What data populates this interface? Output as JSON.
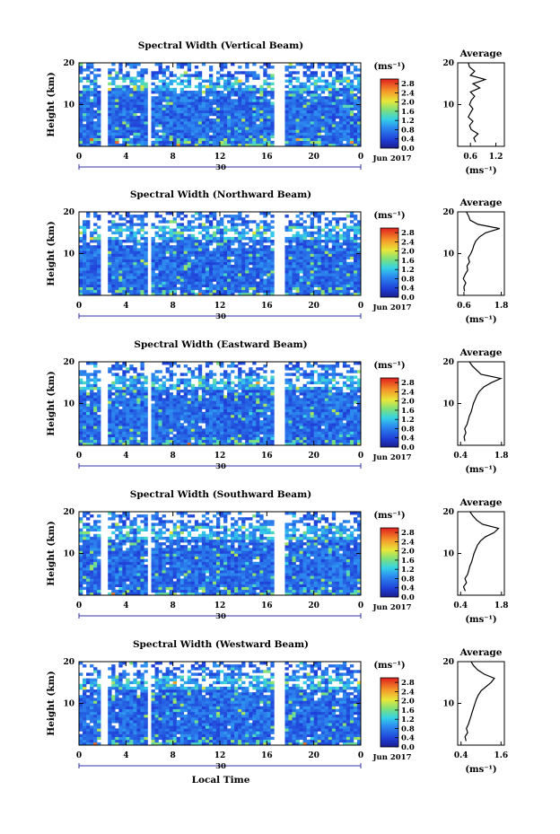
{
  "chart_data": [
    {
      "type": "heatmap",
      "title": "Spectral Width (Vertical Beam)",
      "ylabel": "Height (km)",
      "xticks": [
        "0",
        "4",
        "8",
        "12",
        "16",
        "20",
        "0"
      ],
      "yticks": [
        "20",
        "10"
      ],
      "xlim": [
        0,
        24
      ],
      "ylim": [
        0,
        20
      ],
      "date_marker": "30",
      "date_label": "Jun 2017",
      "colorbar": {
        "unit": "(ms⁻¹)",
        "ticks": [
          "2.8",
          "2.4",
          "2.0",
          "1.6",
          "1.2",
          "0.8",
          "0.4",
          "0.0"
        ],
        "range": [
          0,
          3.0
        ]
      },
      "profile": {
        "title": "Average",
        "xticks": [
          "0.6",
          "1.2"
        ],
        "yticks": [
          "20",
          "10"
        ],
        "xlim": [
          0.3,
          1.4
        ],
        "xlabel": "(ms⁻¹)",
        "y": [
          1,
          2,
          3,
          4,
          5,
          6,
          7,
          8,
          9,
          10,
          11,
          12,
          13,
          14,
          15,
          16,
          17,
          18,
          19,
          20
        ],
        "x": [
          0.72,
          0.68,
          0.78,
          0.62,
          0.58,
          0.66,
          0.55,
          0.6,
          0.66,
          0.58,
          0.62,
          0.7,
          0.6,
          0.82,
          0.66,
          0.95,
          0.6,
          0.7,
          0.58,
          0.55
        ]
      }
    },
    {
      "type": "heatmap",
      "title": "Spectral Width (Northward Beam)",
      "ylabel": "Height (km)",
      "xticks": [
        "0",
        "4",
        "8",
        "12",
        "16",
        "20",
        "0"
      ],
      "yticks": [
        "20",
        "10"
      ],
      "xlim": [
        0,
        24
      ],
      "ylim": [
        0,
        20
      ],
      "date_marker": "30",
      "date_label": "Jun 2017",
      "colorbar": {
        "unit": "(ms⁻¹)",
        "ticks": [
          "2.8",
          "2.4",
          "2.0",
          "1.6",
          "1.2",
          "0.8",
          "0.4",
          "0.0"
        ],
        "range": [
          0,
          3.0
        ]
      },
      "profile": {
        "title": "Average",
        "xticks": [
          "0.6",
          "1.8"
        ],
        "yticks": [
          "20",
          "10"
        ],
        "xlim": [
          0.4,
          1.9
        ],
        "xlabel": "(ms⁻¹)",
        "y": [
          1,
          2,
          3,
          4,
          5,
          6,
          7,
          8,
          9,
          10,
          11,
          12,
          13,
          14,
          15,
          16,
          17,
          18,
          19,
          20
        ],
        "x": [
          0.62,
          0.6,
          0.66,
          0.58,
          0.64,
          0.72,
          0.7,
          0.78,
          0.74,
          0.82,
          0.88,
          0.92,
          0.98,
          1.1,
          1.3,
          1.75,
          1.05,
          0.8,
          0.75,
          0.68
        ]
      }
    },
    {
      "type": "heatmap",
      "title": "Spectral Width (Eastward Beam)",
      "ylabel": "Height (km)",
      "xticks": [
        "0",
        "4",
        "8",
        "12",
        "16",
        "20",
        "0"
      ],
      "yticks": [
        "20",
        "10"
      ],
      "xlim": [
        0,
        24
      ],
      "ylim": [
        0,
        20
      ],
      "date_marker": "30",
      "date_label": "Jun 2017",
      "colorbar": {
        "unit": "(ms⁻¹)",
        "ticks": [
          "2.8",
          "2.4",
          "2.0",
          "1.6",
          "1.2",
          "0.8",
          "0.4",
          "0.0"
        ],
        "range": [
          0,
          3.0
        ]
      },
      "profile": {
        "title": "Average",
        "xticks": [
          "0.4",
          "1.8"
        ],
        "yticks": [
          "20",
          "10"
        ],
        "xlim": [
          0.3,
          1.9
        ],
        "xlabel": "(ms⁻¹)",
        "y": [
          1,
          2,
          3,
          4,
          5,
          6,
          7,
          8,
          9,
          10,
          11,
          12,
          13,
          14,
          15,
          16,
          17,
          18,
          19,
          20
        ],
        "x": [
          0.55,
          0.52,
          0.58,
          0.54,
          0.62,
          0.66,
          0.7,
          0.76,
          0.8,
          0.84,
          0.9,
          0.96,
          1.05,
          1.2,
          1.45,
          1.78,
          1.1,
          0.95,
          0.8,
          0.7
        ]
      }
    },
    {
      "type": "heatmap",
      "title": "Spectral Width (Southward Beam)",
      "ylabel": "Height (km)",
      "xticks": [
        "0",
        "4",
        "8",
        "12",
        "16",
        "20",
        "0"
      ],
      "yticks": [
        "20",
        "10"
      ],
      "xlim": [
        0,
        24
      ],
      "ylim": [
        0,
        20
      ],
      "date_marker": "30",
      "date_label": "Jun 2017",
      "colorbar": {
        "unit": "(ms⁻¹)",
        "ticks": [
          "2.8",
          "2.4",
          "2.0",
          "1.6",
          "1.2",
          "0.8",
          "0.4",
          "0.0"
        ],
        "range": [
          0,
          3.0
        ]
      },
      "profile": {
        "title": "Average",
        "xticks": [
          "0.4",
          "1.8"
        ],
        "yticks": [
          "20",
          "10"
        ],
        "xlim": [
          0.3,
          1.9
        ],
        "xlabel": "(ms⁻¹)",
        "y": [
          1,
          2,
          3,
          4,
          5,
          6,
          7,
          8,
          9,
          10,
          11,
          12,
          13,
          14,
          15,
          16,
          17,
          18,
          19,
          20
        ],
        "x": [
          0.56,
          0.5,
          0.6,
          0.55,
          0.64,
          0.68,
          0.72,
          0.78,
          0.82,
          0.86,
          0.92,
          0.98,
          1.08,
          1.25,
          1.55,
          1.7,
          1.15,
          0.95,
          0.82,
          0.72
        ]
      }
    },
    {
      "type": "heatmap",
      "title": "Spectral Width (Westward Beam)",
      "ylabel": "Height (km)",
      "xticks": [
        "0",
        "4",
        "8",
        "12",
        "16",
        "20",
        "0"
      ],
      "yticks": [
        "20",
        "10"
      ],
      "xlim": [
        0,
        24
      ],
      "ylim": [
        0,
        20
      ],
      "date_marker": "30",
      "date_label": "Jun 2017",
      "xlabel": "Local Time",
      "colorbar": {
        "unit": "(ms⁻¹)",
        "ticks": [
          "2.8",
          "2.4",
          "2.0",
          "1.6",
          "1.2",
          "0.8",
          "0.4",
          "0.0"
        ],
        "range": [
          0,
          3.0
        ]
      },
      "profile": {
        "title": "Average",
        "xticks": [
          "0.4",
          "1.6"
        ],
        "yticks": [
          "20",
          "10"
        ],
        "xlim": [
          0.3,
          1.7
        ],
        "xlabel": "(ms⁻¹)",
        "y": [
          1,
          2,
          3,
          4,
          5,
          6,
          7,
          8,
          9,
          10,
          11,
          12,
          13,
          14,
          15,
          16,
          17,
          18,
          19,
          20
        ],
        "x": [
          0.55,
          0.52,
          0.6,
          0.56,
          0.62,
          0.66,
          0.7,
          0.74,
          0.78,
          0.82,
          0.86,
          0.92,
          1.0,
          1.15,
          1.3,
          1.4,
          1.1,
          0.9,
          0.78,
          0.7
        ]
      }
    }
  ]
}
